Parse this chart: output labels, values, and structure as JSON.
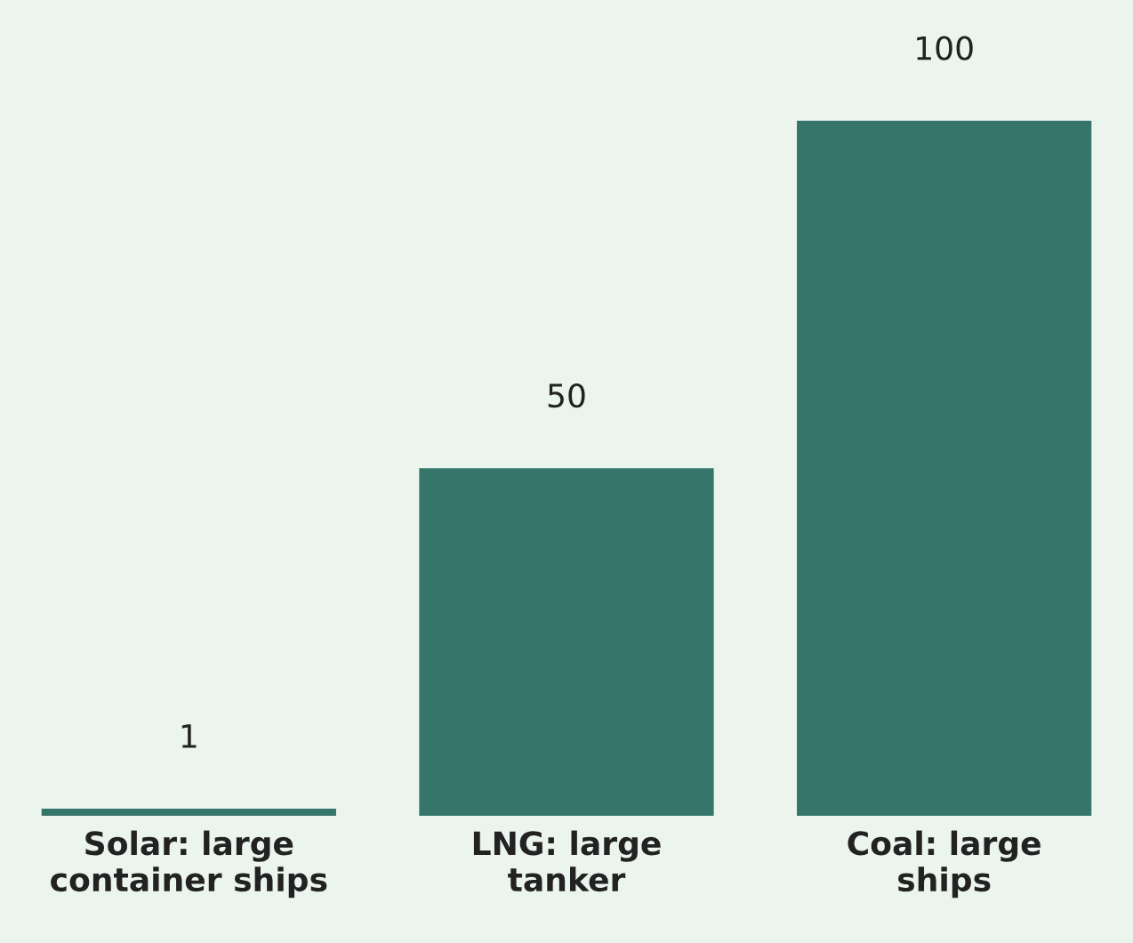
{
  "chart_data": {
    "type": "bar",
    "categories": [
      "Solar: large\ncontainer ships",
      "LNG: large\ntanker",
      "Coal: large\nships"
    ],
    "values": [
      1,
      50,
      100
    ],
    "color": "#35756a",
    "data_labels": true,
    "grid": false,
    "legend": false
  }
}
